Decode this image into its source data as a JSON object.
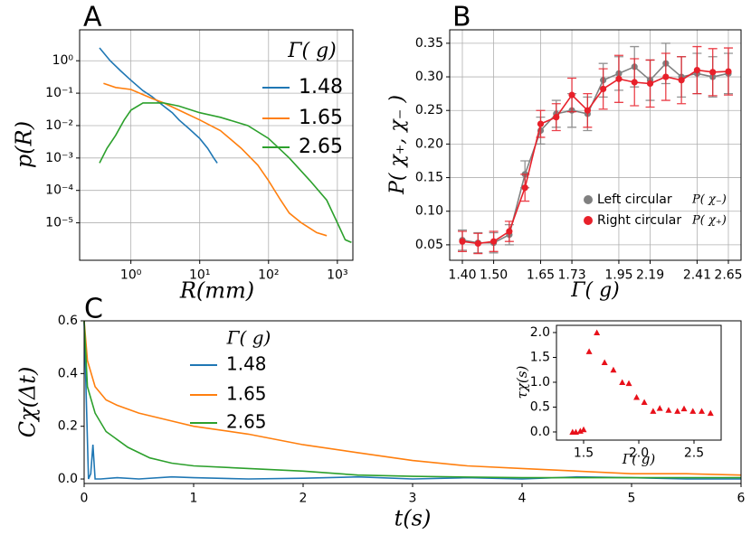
{
  "chart_data": [
    {
      "type": "line",
      "panel_label": "A",
      "xlabel": "R(mm)",
      "ylabel": "p(R)",
      "log_x": true,
      "log_y": true,
      "grid": true,
      "legend_title": "Γ( g)",
      "xlim": [
        0.18,
        1680
      ],
      "ylim": [
        7e-07,
        9
      ],
      "xticks": [
        {
          "value": 1,
          "label": "10⁰"
        },
        {
          "value": 10,
          "label": "10¹"
        },
        {
          "value": 100,
          "label": "10²"
        },
        {
          "value": 1000,
          "label": "10³"
        }
      ],
      "yticks": [
        {
          "value": 1e-05,
          "label": "10⁻⁵"
        },
        {
          "value": 0.0001,
          "label": "10⁻⁴"
        },
        {
          "value": 0.001,
          "label": "10⁻³"
        },
        {
          "value": 0.01,
          "label": "10⁻²"
        },
        {
          "value": 0.1,
          "label": "10⁻¹"
        },
        {
          "value": 1,
          "label": "10⁰"
        }
      ],
      "series": [
        {
          "name": "1.48",
          "color": "#1f77b4",
          "x": [
            0.35,
            0.5,
            0.7,
            1,
            1.5,
            2,
            3,
            4,
            5,
            7,
            10,
            13,
            16,
            18
          ],
          "values": [
            2.5,
            1.0,
            0.5,
            0.25,
            0.12,
            0.08,
            0.04,
            0.025,
            0.015,
            0.008,
            0.004,
            0.002,
            0.001,
            0.0007
          ]
        },
        {
          "name": "1.65",
          "color": "#ff7f0e",
          "x": [
            0.4,
            0.6,
            1,
            2,
            3,
            5,
            10,
            20,
            40,
            70,
            100,
            150,
            200,
            300,
            500,
            700
          ],
          "values": [
            0.2,
            0.15,
            0.13,
            0.07,
            0.05,
            0.03,
            0.015,
            0.007,
            0.002,
            0.0006,
            0.0002,
            5e-05,
            2e-05,
            1e-05,
            5e-06,
            4e-06
          ]
        },
        {
          "name": "2.65",
          "color": "#2ca02c",
          "x": [
            0.35,
            0.45,
            0.6,
            0.8,
            1,
            1.5,
            3,
            5,
            10,
            20,
            50,
            100,
            200,
            400,
            700,
            1000,
            1300,
            1600
          ],
          "values": [
            0.0007,
            0.002,
            0.005,
            0.015,
            0.03,
            0.05,
            0.05,
            0.04,
            0.025,
            0.018,
            0.01,
            0.004,
            0.001,
            0.0002,
            5e-05,
            1e-05,
            3e-06,
            2.5e-06
          ]
        }
      ]
    },
    {
      "type": "line",
      "panel_label": "B",
      "xlabel": "Γ( g)",
      "ylabel": "P( χ₊, χ₋ )",
      "grid": true,
      "markers": true,
      "categories": [
        "1.40",
        null,
        "1.50",
        null,
        null,
        "1.65",
        null,
        "1.73",
        null,
        null,
        "1.95",
        null,
        "2.19",
        null,
        null,
        "2.41",
        null,
        "2.65"
      ],
      "ylim": [
        0.027,
        0.37
      ],
      "yticks": [
        0.05,
        {
          "value": 0.1,
          "label": "0.10"
        },
        0.15,
        {
          "value": 0.2,
          "label": "0.20"
        },
        0.25,
        {
          "value": 0.3,
          "label": "0.30"
        },
        0.35
      ],
      "series": [
        {
          "name": "Left circular",
          "formula": "P( χ₋)",
          "color": "#808080",
          "values": [
            0.057,
            0.053,
            0.053,
            0.065,
            0.155,
            0.22,
            0.245,
            0.25,
            0.245,
            0.295,
            0.305,
            0.315,
            0.295,
            0.32,
            0.3,
            0.305,
            0.3,
            0.305
          ],
          "errors": [
            0.015,
            0.015,
            0.015,
            0.015,
            0.02,
            0.02,
            0.02,
            0.025,
            0.025,
            0.025,
            0.025,
            0.03,
            0.03,
            0.03,
            0.03,
            0.03,
            0.03,
            0.03
          ]
        },
        {
          "name": "Right circular",
          "formula": "P( χ₊)",
          "color": "#e8202a",
          "values": [
            0.055,
            0.052,
            0.055,
            0.07,
            0.135,
            0.23,
            0.24,
            0.273,
            0.25,
            0.282,
            0.297,
            0.292,
            0.29,
            0.3,
            0.295,
            0.31,
            0.307,
            0.308
          ],
          "errors": [
            0.015,
            0.015,
            0.015,
            0.015,
            0.02,
            0.02,
            0.02,
            0.025,
            0.025,
            0.03,
            0.035,
            0.035,
            0.035,
            0.035,
            0.035,
            0.035,
            0.035,
            0.035
          ]
        }
      ]
    },
    {
      "type": "line",
      "panel_label": "C",
      "xlabel": "t(s)",
      "ylabel": "Cχ(Δt)",
      "grid": false,
      "legend_title": "Γ( g)",
      "xlim": [
        0,
        6
      ],
      "ylim": [
        -0.017,
        0.6
      ],
      "xticks": [
        0,
        1,
        2,
        3,
        4,
        5,
        6
      ],
      "yticks": [
        {
          "value": 0,
          "label": "0.0"
        },
        0.2,
        0.4,
        0.6
      ],
      "series": [
        {
          "name": "1.48",
          "color": "#1f77b4",
          "x": [
            0,
            0.02,
            0.04,
            0.06,
            0.08,
            0.1,
            0.15,
            0.3,
            0.5,
            0.8,
            1,
            1.5,
            2,
            2.5,
            3,
            3.5,
            4,
            4.5,
            5,
            5.5,
            6
          ],
          "values": [
            0.6,
            0.3,
            0.0,
            0.02,
            0.13,
            0.0,
            0.0,
            0.005,
            0.0,
            0.008,
            0.005,
            0.0,
            0.003,
            0.008,
            0.0,
            0.005,
            0.0,
            0.008,
            0.005,
            0.0,
            0.0
          ]
        },
        {
          "name": "1.65",
          "color": "#ff7f0e",
          "x": [
            0,
            0.03,
            0.1,
            0.2,
            0.3,
            0.5,
            0.8,
            1,
            1.5,
            2,
            2.5,
            3,
            3.5,
            4,
            4.5,
            5,
            5.5,
            6
          ],
          "values": [
            0.6,
            0.45,
            0.35,
            0.3,
            0.28,
            0.25,
            0.22,
            0.2,
            0.17,
            0.13,
            0.1,
            0.07,
            0.05,
            0.04,
            0.03,
            0.02,
            0.02,
            0.015
          ]
        },
        {
          "name": "2.65",
          "color": "#2ca02c",
          "x": [
            0,
            0.03,
            0.1,
            0.2,
            0.4,
            0.6,
            0.8,
            1,
            1.5,
            2,
            2.5,
            3,
            4,
            5,
            6
          ],
          "values": [
            0.6,
            0.35,
            0.25,
            0.18,
            0.12,
            0.08,
            0.06,
            0.05,
            0.04,
            0.03,
            0.015,
            0.01,
            0.005,
            0.005,
            0.005
          ]
        }
      ]
    },
    {
      "type": "scatter",
      "xlabel": "Γ( g)",
      "ylabel": "τχ(s)",
      "grid": false,
      "color": "#e8101a",
      "xlim": [
        1.254,
        2.746
      ],
      "ylim": [
        -0.164,
        2.145
      ],
      "xticks": [
        1.5,
        {
          "value": 2,
          "label": "2.0"
        },
        2.5
      ],
      "yticks": [
        {
          "value": 0,
          "label": "0.0"
        },
        0.5,
        {
          "value": 1,
          "label": "1.0"
        },
        1.5,
        {
          "value": 2,
          "label": "2.0"
        }
      ],
      "x": [
        1.4,
        1.43,
        1.47,
        1.5,
        1.55,
        1.62,
        1.69,
        1.77,
        1.85,
        1.91,
        1.98,
        2.05,
        2.13,
        2.19,
        2.27,
        2.35,
        2.41,
        2.49,
        2.57,
        2.65
      ],
      "values": [
        0.0,
        0.0,
        0.02,
        0.05,
        1.62,
        2.0,
        1.4,
        1.25,
        1.0,
        0.98,
        0.7,
        0.6,
        0.42,
        0.48,
        0.44,
        0.42,
        0.47,
        0.42,
        0.42,
        0.38
      ]
    }
  ]
}
